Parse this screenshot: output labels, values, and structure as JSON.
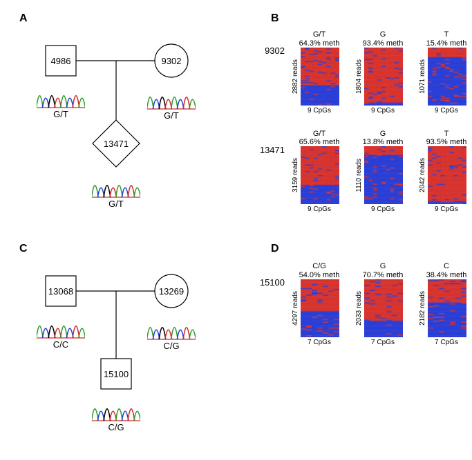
{
  "panel_labels": {
    "A": "A",
    "B": "B",
    "C": "C",
    "D": "D"
  },
  "chromat_colors": [
    "#2e9b2e",
    "#1f3dd8",
    "#000000",
    "#d62728",
    "#2e9b2e",
    "#1f3dd8",
    "#d62728",
    "#2e9b2e"
  ],
  "chromat_baseline_color": "#d62728",
  "pedigreeA": {
    "father": {
      "shape": "square",
      "id": "4986",
      "genotype": "G/T"
    },
    "mother": {
      "shape": "circle",
      "id": "9302",
      "genotype": "G/T"
    },
    "child": {
      "shape": "diamond",
      "id": "13471",
      "genotype": "G/T"
    },
    "stroke": "#000000",
    "stroke_width": 1.2,
    "fill": "#ffffff",
    "font_size": 13
  },
  "pedigreeC": {
    "father": {
      "shape": "square",
      "id": "13068",
      "genotype": "C/C"
    },
    "mother": {
      "shape": "circle",
      "id": "13269",
      "genotype": "C/G"
    },
    "child": {
      "shape": "square",
      "id": "15100",
      "genotype": "C/G"
    },
    "stroke": "#000000",
    "stroke_width": 1.2,
    "fill": "#ffffff",
    "font_size": 13
  },
  "heatmap_colors": {
    "meth": "#d7342f",
    "unmeth": "#2b3fd6"
  },
  "heatmap_dims": {
    "width": 56,
    "height": 84,
    "cpg_cols": 9,
    "cpg_cols_D": 7
  },
  "panelB": {
    "rows": [
      {
        "label": "9302",
        "cells": [
          {
            "title": "G/T",
            "meth_pct": 64.3,
            "reads": 2882,
            "cpgs": 9
          },
          {
            "title": "G",
            "meth_pct": 93.4,
            "reads": 1804,
            "cpgs": 9
          },
          {
            "title": "T",
            "meth_pct": 15.4,
            "reads": 1071,
            "cpgs": 9
          }
        ]
      },
      {
        "label": "13471",
        "cells": [
          {
            "title": "G/T",
            "meth_pct": 65.6,
            "reads": 3159,
            "cpgs": 9
          },
          {
            "title": "G",
            "meth_pct": 13.8,
            "reads": 1110,
            "cpgs": 9
          },
          {
            "title": "T",
            "meth_pct": 93.5,
            "reads": 2042,
            "cpgs": 9
          }
        ]
      }
    ]
  },
  "panelD": {
    "rows": [
      {
        "label": "15100",
        "cells": [
          {
            "title": "C/G",
            "meth_pct": 54.0,
            "reads": 4297,
            "cpgs": 7
          },
          {
            "title": "G",
            "meth_pct": 70.7,
            "reads": 2033,
            "cpgs": 7
          },
          {
            "title": "C",
            "meth_pct": 38.4,
            "reads": 2182,
            "cpgs": 7
          }
        ]
      }
    ]
  }
}
